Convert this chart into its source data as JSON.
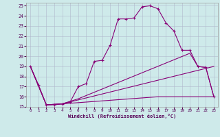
{
  "xlabel": "Windchill (Refroidissement éolien,°C)",
  "bg_color": "#ceeaea",
  "grid_color": "#b0b8cc",
  "line_color": "#880077",
  "xlim": [
    -0.5,
    23.5
  ],
  "ylim": [
    15,
    25.3
  ],
  "yticks": [
    15,
    16,
    17,
    18,
    19,
    20,
    21,
    22,
    23,
    24,
    25
  ],
  "xticks": [
    0,
    1,
    2,
    3,
    4,
    5,
    6,
    7,
    8,
    9,
    10,
    11,
    12,
    13,
    14,
    15,
    16,
    17,
    18,
    19,
    20,
    21,
    22,
    23
  ],
  "line1_x": [
    0,
    1,
    2,
    3,
    4,
    5,
    6,
    7,
    8,
    9,
    10,
    11,
    12,
    13,
    14,
    15,
    16,
    17,
    18,
    19,
    20,
    21,
    22,
    23
  ],
  "line1_y": [
    19.0,
    17.2,
    15.2,
    15.2,
    15.3,
    15.5,
    17.0,
    17.3,
    19.5,
    19.6,
    21.1,
    23.7,
    23.7,
    23.8,
    24.9,
    25.0,
    24.7,
    23.3,
    22.5,
    20.6,
    20.6,
    19.0,
    18.9,
    16.0
  ],
  "line2_x": [
    0,
    2,
    4,
    6,
    20,
    21,
    22,
    23
  ],
  "line2_y": [
    19.0,
    15.2,
    15.3,
    15.8,
    20.3,
    19.0,
    18.9,
    16.0
  ],
  "line3_x": [
    0,
    2,
    4,
    23
  ],
  "line3_y": [
    19.0,
    15.2,
    15.3,
    19.0
  ],
  "line4_x": [
    0,
    2,
    4,
    16,
    23
  ],
  "line4_y": [
    19.0,
    15.2,
    15.3,
    16.0,
    16.0
  ]
}
